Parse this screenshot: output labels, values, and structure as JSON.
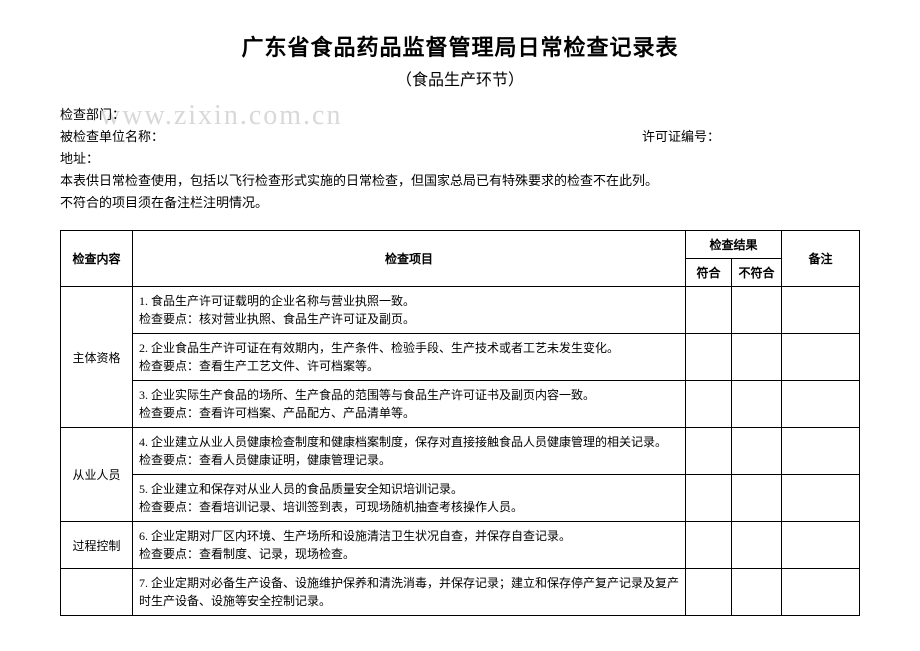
{
  "watermark": "www.zixin.com.cn",
  "title": "广东省食品药品监督管理局日常检查记录表",
  "subtitle": "（食品生产环节）",
  "header": {
    "dept_label": "检查部门：",
    "unit_label": "被检查单位名称：",
    "license_label": "许可证编号：",
    "address_label": "地址：",
    "note1": "本表供日常检查使用，包括以飞行检查形式实施的日常检查，但国家总局已有特殊要求的检查不在此列。",
    "note2": "不符合的项目须在备注栏注明情况。"
  },
  "table": {
    "headers": {
      "category": "检查内容",
      "item": "检查项目",
      "result": "检查结果",
      "conform": "符合",
      "nonconform": "不符合",
      "remark": "备注"
    },
    "rows": [
      {
        "category": "主体资格",
        "items": [
          "1. 食品生产许可证载明的企业名称与营业执照一致。\n检查要点：核对营业执照、食品生产许可证及副页。",
          "2. 企业食品生产许可证在有效期内，生产条件、检验手段、生产技术或者工艺未发生变化。\n检查要点：查看生产工艺文件、许可档案等。",
          "3. 企业实际生产食品的场所、生产食品的范围等与食品生产许可证书及副页内容一致。\n检查要点：查看许可档案、产品配方、产品清单等。"
        ]
      },
      {
        "category": "从业人员",
        "items": [
          "4. 企业建立从业人员健康检查制度和健康档案制度，保存对直接接触食品人员健康管理的相关记录。\n检查要点：查看人员健康证明，健康管理记录。",
          "5. 企业建立和保存对从业人员的食品质量安全知识培训记录。\n检查要点：查看培训记录、培训签到表，可现场随机抽查考核操作人员。"
        ]
      },
      {
        "category": "过程控制",
        "items": [
          "6. 企业定期对厂区内环境、生产场所和设施清洁卫生状况自查，并保存自查记录。\n检查要点：查看制度、记录，现场检查。"
        ]
      },
      {
        "category": "",
        "items": [
          "7. 企业定期对必备生产设备、设施维护保养和清洗消毒，并保存记录；建立和保存停产复产记录及复产时生产设备、设施等安全控制记录。"
        ]
      }
    ]
  }
}
